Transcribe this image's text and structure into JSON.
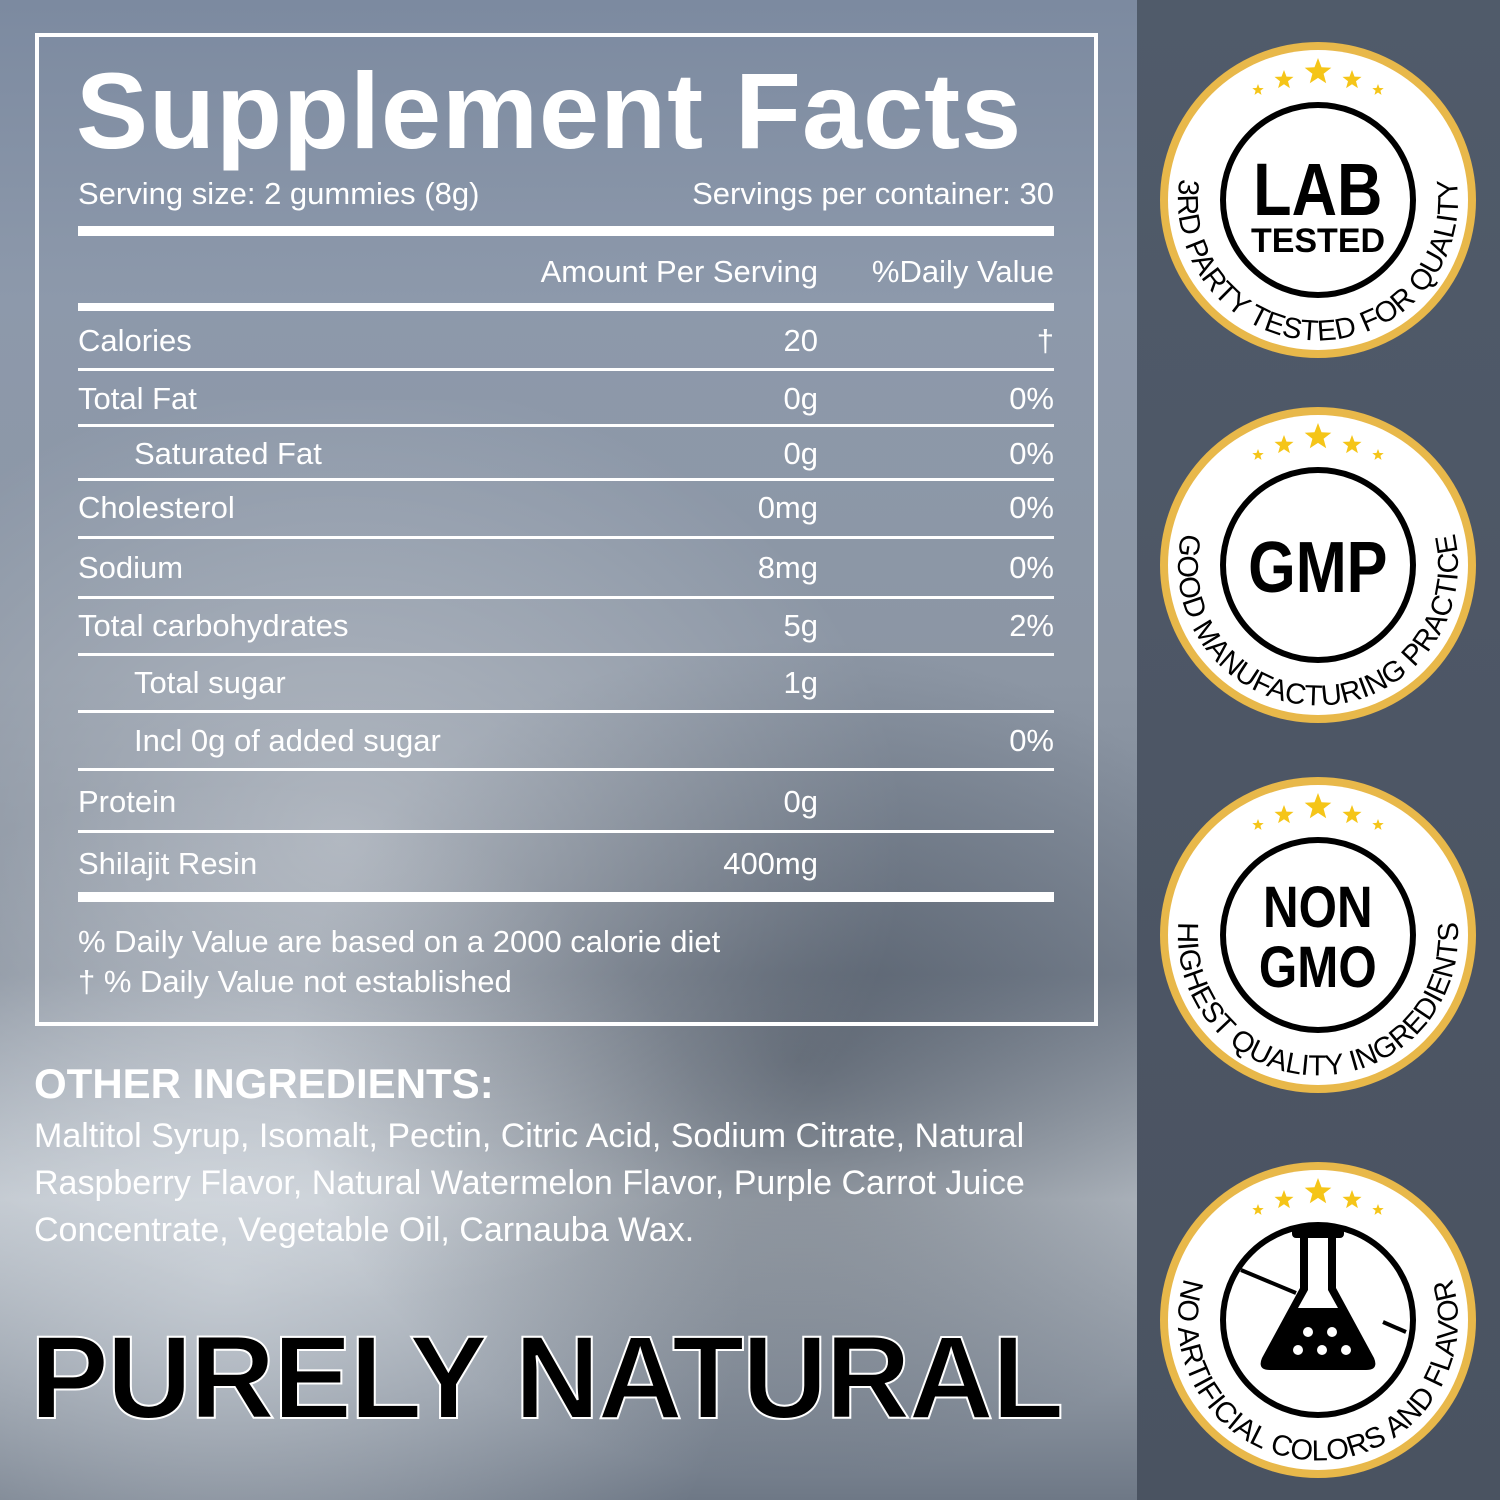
{
  "label": {
    "title": "Supplement Facts",
    "serving_size": "Serving size: 2 gummies (8g)",
    "servings_per_container": "Servings per container: 30",
    "col_amount": "Amount Per Serving",
    "col_dv": "%Daily Value",
    "rows": [
      {
        "name": "Calories",
        "amount": "20",
        "dv": "†"
      },
      {
        "name": "Total Fat",
        "amount": "0g",
        "dv": "0%"
      },
      {
        "name": "Saturated Fat",
        "amount": "0g",
        "dv": "0%"
      },
      {
        "name": "Cholesterol",
        "amount": "0mg",
        "dv": "0%"
      },
      {
        "name": "Sodium",
        "amount": "8mg",
        "dv": "0%"
      },
      {
        "name": "Total carbohydrates",
        "amount": "5g",
        "dv": "2%"
      },
      {
        "name": "Total sugar",
        "amount": "1g",
        "dv": ""
      },
      {
        "name": "Incl 0g of added sugar",
        "amount": "",
        "dv": "0%"
      },
      {
        "name": "Protein",
        "amount": "0g",
        "dv": ""
      },
      {
        "name": "Shilajit Resin",
        "amount": "400mg",
        "dv": ""
      }
    ],
    "footnote1": "% Daily Value are based on a 2000 calorie diet",
    "footnote2": "† % Daily Value not established"
  },
  "other_ingredients": {
    "heading": "OTHER INGREDIENTS:",
    "text": "Maltitol Syrup, Isomalt, Pectin, Citric Acid, Sodium Citrate, Natural Raspberry Flavor, Natural Watermelon Flavor, Purple Carrot Juice Concentrate, Vegetable Oil, Carnauba Wax."
  },
  "slogan": "PURELY NATURAL",
  "badges": [
    {
      "center_line1": "LAB",
      "center_line2": "TESTED",
      "arc": "3RD PARTY TESTED FOR QUALITY"
    },
    {
      "center_line1": "GMP",
      "arc": "GOOD MANUFACTURING PRACTICE"
    },
    {
      "center_line1": "NON",
      "center_line2": "GMO",
      "arc": "HIGHEST QUALITY INGREDIENTS"
    },
    {
      "icon": "flask-icon",
      "arc": "NO ARTIFICIAL COLORS AND FLAVOR"
    }
  ],
  "colors": {
    "gold": "#e8b84a",
    "star": "#f5c518",
    "strip": "#4d5665"
  }
}
